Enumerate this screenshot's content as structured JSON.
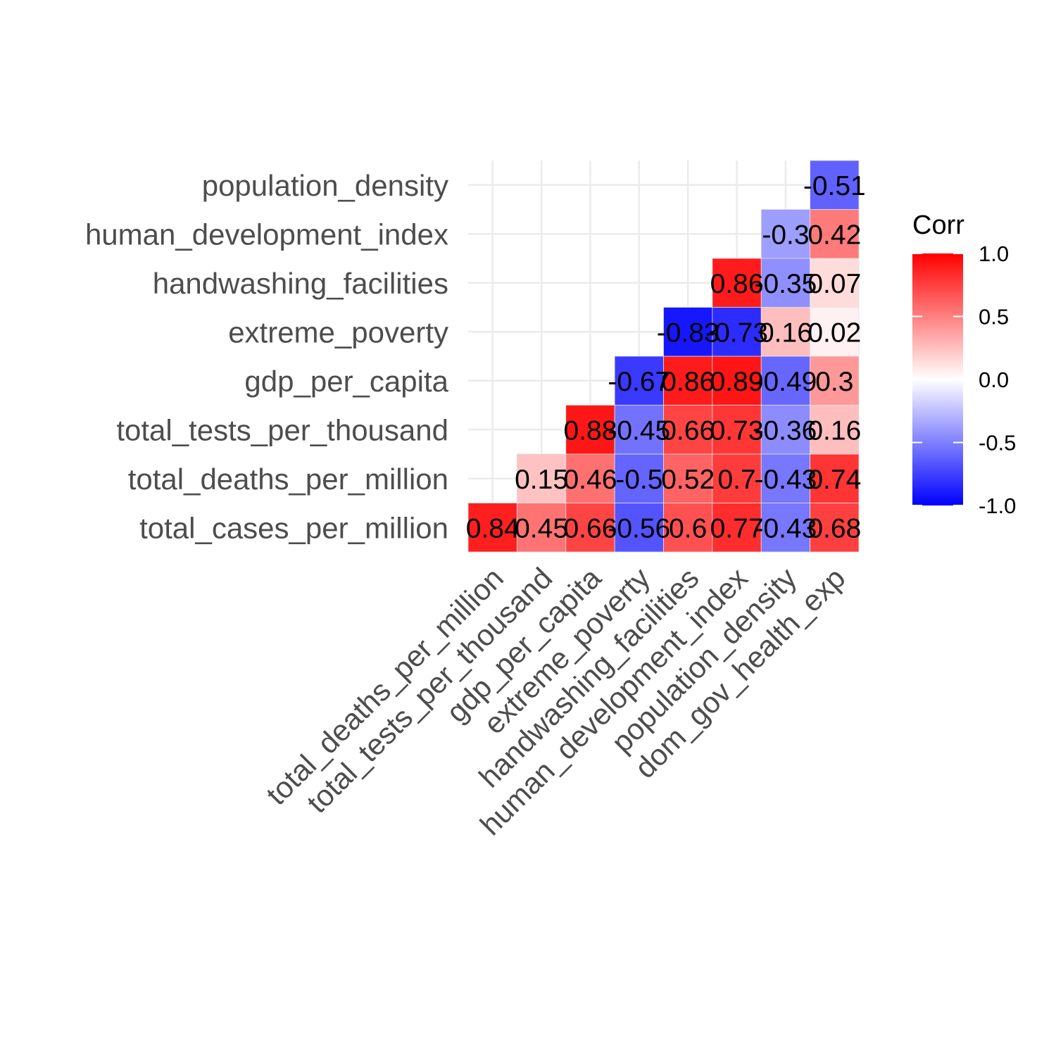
{
  "chart_data": {
    "type": "heatmap",
    "title": "",
    "xlabel": "",
    "ylabel": "",
    "x_categories": [
      "total_deaths_per_million",
      "total_tests_per_thousand",
      "gdp_per_capita",
      "extreme_poverty",
      "handwashing_facilities",
      "human_development_index",
      "population_density",
      "dom_gov_health_exp"
    ],
    "y_categories": [
      "total_cases_per_million",
      "total_deaths_per_million",
      "total_tests_per_thousand",
      "gdp_per_capita",
      "extreme_poverty",
      "handwashing_facilities",
      "human_development_index",
      "population_density"
    ],
    "cells": [
      {
        "x": "total_deaths_per_million",
        "y": "total_cases_per_million",
        "value": 0.84,
        "label": "0.84"
      },
      {
        "x": "total_tests_per_thousand",
        "y": "total_cases_per_million",
        "value": 0.45,
        "label": "0.45"
      },
      {
        "x": "gdp_per_capita",
        "y": "total_cases_per_million",
        "value": 0.66,
        "label": "0.66"
      },
      {
        "x": "extreme_poverty",
        "y": "total_cases_per_million",
        "value": -0.56,
        "label": "-0.56"
      },
      {
        "x": "handwashing_facilities",
        "y": "total_cases_per_million",
        "value": 0.6,
        "label": "0.6"
      },
      {
        "x": "human_development_index",
        "y": "total_cases_per_million",
        "value": 0.77,
        "label": "0.77"
      },
      {
        "x": "population_density",
        "y": "total_cases_per_million",
        "value": -0.43,
        "label": "-0.43"
      },
      {
        "x": "dom_gov_health_exp",
        "y": "total_cases_per_million",
        "value": 0.68,
        "label": "0.68"
      },
      {
        "x": "total_tests_per_thousand",
        "y": "total_deaths_per_million",
        "value": 0.15,
        "label": "0.15"
      },
      {
        "x": "gdp_per_capita",
        "y": "total_deaths_per_million",
        "value": 0.46,
        "label": "0.46"
      },
      {
        "x": "extreme_poverty",
        "y": "total_deaths_per_million",
        "value": -0.5,
        "label": "-0.5"
      },
      {
        "x": "handwashing_facilities",
        "y": "total_deaths_per_million",
        "value": 0.52,
        "label": "0.52"
      },
      {
        "x": "human_development_index",
        "y": "total_deaths_per_million",
        "value": 0.7,
        "label": "0.7"
      },
      {
        "x": "population_density",
        "y": "total_deaths_per_million",
        "value": -0.43,
        "label": "-0.43"
      },
      {
        "x": "dom_gov_health_exp",
        "y": "total_deaths_per_million",
        "value": 0.74,
        "label": "0.74"
      },
      {
        "x": "gdp_per_capita",
        "y": "total_tests_per_thousand",
        "value": 0.88,
        "label": "0.88"
      },
      {
        "x": "extreme_poverty",
        "y": "total_tests_per_thousand",
        "value": -0.45,
        "label": "-0.45"
      },
      {
        "x": "handwashing_facilities",
        "y": "total_tests_per_thousand",
        "value": 0.66,
        "label": "0.66"
      },
      {
        "x": "human_development_index",
        "y": "total_tests_per_thousand",
        "value": 0.73,
        "label": "0.73"
      },
      {
        "x": "population_density",
        "y": "total_tests_per_thousand",
        "value": -0.36,
        "label": "-0.36"
      },
      {
        "x": "dom_gov_health_exp",
        "y": "total_tests_per_thousand",
        "value": 0.16,
        "label": "0.16"
      },
      {
        "x": "extreme_poverty",
        "y": "gdp_per_capita",
        "value": -0.67,
        "label": "-0.67"
      },
      {
        "x": "handwashing_facilities",
        "y": "gdp_per_capita",
        "value": 0.86,
        "label": "0.86"
      },
      {
        "x": "human_development_index",
        "y": "gdp_per_capita",
        "value": 0.89,
        "label": "0.89"
      },
      {
        "x": "population_density",
        "y": "gdp_per_capita",
        "value": -0.49,
        "label": "-0.49"
      },
      {
        "x": "dom_gov_health_exp",
        "y": "gdp_per_capita",
        "value": 0.3,
        "label": "0.3"
      },
      {
        "x": "handwashing_facilities",
        "y": "extreme_poverty",
        "value": -0.83,
        "label": "-0.83"
      },
      {
        "x": "human_development_index",
        "y": "extreme_poverty",
        "value": -0.73,
        "label": "-0.73"
      },
      {
        "x": "population_density",
        "y": "extreme_poverty",
        "value": 0.16,
        "label": "0.16"
      },
      {
        "x": "dom_gov_health_exp",
        "y": "extreme_poverty",
        "value": 0.02,
        "label": "0.02"
      },
      {
        "x": "human_development_index",
        "y": "handwashing_facilities",
        "value": 0.86,
        "label": "0.86"
      },
      {
        "x": "population_density",
        "y": "handwashing_facilities",
        "value": -0.35,
        "label": "-0.35"
      },
      {
        "x": "dom_gov_health_exp",
        "y": "handwashing_facilities",
        "value": 0.07,
        "label": "0.07"
      },
      {
        "x": "population_density",
        "y": "human_development_index",
        "value": -0.3,
        "label": "-0.3"
      },
      {
        "x": "dom_gov_health_exp",
        "y": "human_development_index",
        "value": 0.42,
        "label": "0.42"
      },
      {
        "x": "dom_gov_health_exp",
        "y": "population_density",
        "value": -0.51,
        "label": "-0.51"
      }
    ],
    "color_scale": {
      "low": "#0000ff",
      "mid": "#ffffff",
      "high": "#ff0000",
      "limits": [
        -1,
        1
      ]
    },
    "grid": true,
    "legend": {
      "title": "Corr",
      "position": "right",
      "ticks": [
        {
          "value": 1.0,
          "label": "1.0"
        },
        {
          "value": 0.5,
          "label": "0.5"
        },
        {
          "value": 0.0,
          "label": "0.0"
        },
        {
          "value": -0.5,
          "label": "-0.5"
        },
        {
          "value": -1.0,
          "label": "-1.0"
        }
      ]
    }
  }
}
